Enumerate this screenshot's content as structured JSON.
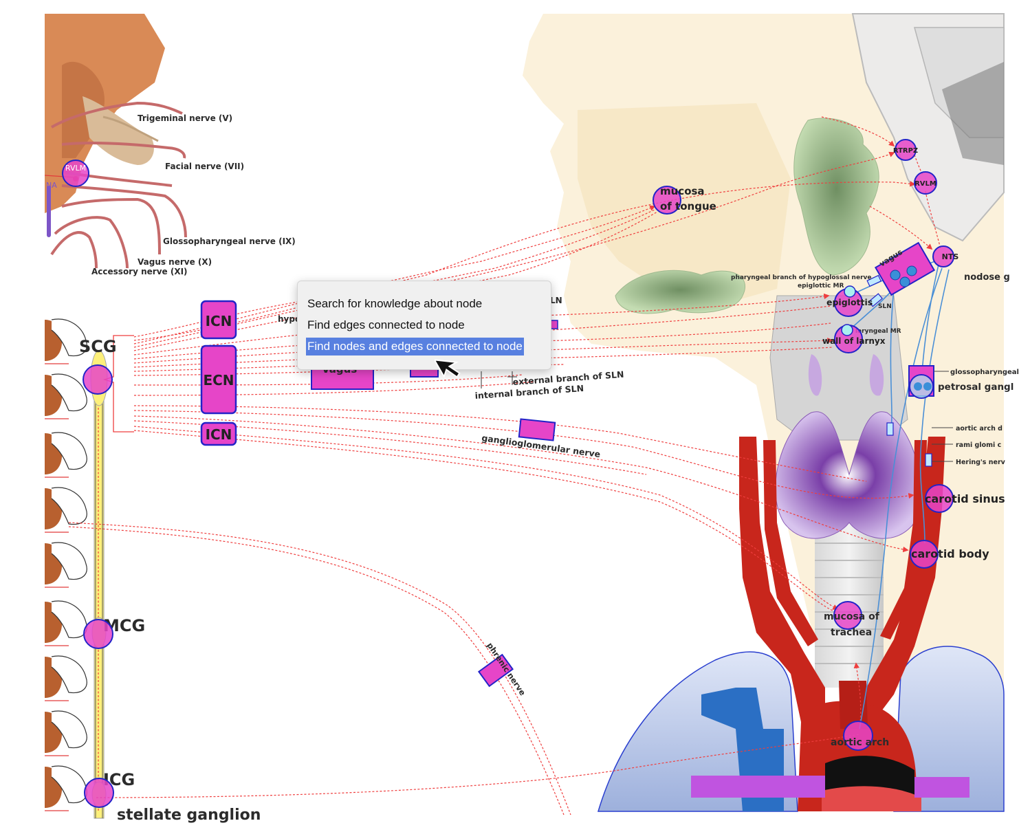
{
  "labels": {
    "cranial_nerves": [
      "Trigeminal nerve (V)",
      "Facial nerve (VII)",
      "Glossopharyngeal nerve (IX)",
      "Vagus nerve (X)",
      "Accessory nerve (XI)"
    ],
    "na": "NA",
    "ganglia": [
      "SCG",
      "MCG",
      "ICG"
    ],
    "stellate": "stellate ganglion",
    "hypo_partial": "hypo",
    "sln_partial": "LN",
    "vagus_box": "Vagus",
    "external_branch": "external branch of SLN",
    "internal_branch": "internal branch of SLN",
    "ganglioglomerular": "ganglioglomerular nerve",
    "phrenic": "phrenic nerve",
    "vagus_small": "vagus",
    "pharyngeal_branch": "pharyngeal branch of hypoglossal nerve",
    "epiglottic_mr": "epiglottic MR",
    "sln_small": "SLN",
    "laryngeal_mr": "laryngeal MR",
    "nodose": "nodose g",
    "glossopharyngeal_small": "glossopharyngeal",
    "aortic_arch_small": "aortic arch d",
    "rami_glomi": "rami glomi c",
    "herings": "Hering's nerv"
  },
  "nodes": {
    "rvlm_left": "RVLM",
    "icn_top": "ICN",
    "ecn": "ECN",
    "icn_bottom": "ICN",
    "mucosa_tongue": [
      "mucosa",
      "of tongue"
    ],
    "rtrpz": "RTRPZ",
    "rvlm_right": "RVLM",
    "nts": "NTS",
    "epiglottis": "epiglottis",
    "wall_larynx": "wall of larnyx",
    "petrosal": "petrosal gangl",
    "carotid_sinus": "carotid sinus",
    "carotid_body": "carotid body",
    "mucosa_trachea": [
      "mucosa of",
      "trachea"
    ],
    "aortic_arch": "aortic arch"
  },
  "context_menu": {
    "items": [
      "Search for knowledge about node",
      "Find edges connected to node",
      "Find nodes and edges connected to node"
    ],
    "highlighted_index": 2
  },
  "colors": {
    "node_fill": "#e645c8",
    "node_stroke": "#2323c8",
    "edge": "#ef3e3e",
    "menu_highlight": "#5880e0",
    "artery": "#c8261c",
    "thyroid": "#9b6cc8"
  }
}
